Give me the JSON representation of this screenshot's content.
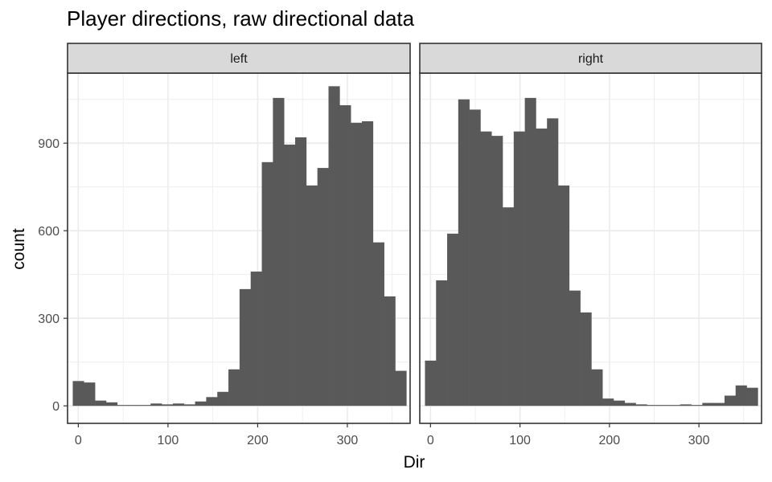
{
  "chart_data": {
    "type": "bar",
    "title": "Player directions, raw directional data",
    "xlabel": "Dir",
    "ylabel": "count",
    "bin_width": 12.4,
    "first_bin_center": 0,
    "xlim": [
      -12,
      370
    ],
    "ylim": [
      -60,
      1140
    ],
    "x_ticks": [
      0,
      100,
      200,
      300
    ],
    "y_ticks": [
      0,
      300,
      600,
      900
    ],
    "grid": true,
    "panels": [
      {
        "label": "left",
        "values": [
          85,
          80,
          18,
          12,
          3,
          3,
          3,
          8,
          5,
          8,
          5,
          15,
          30,
          48,
          125,
          400,
          460,
          835,
          1055,
          895,
          920,
          755,
          815,
          1095,
          1030,
          970,
          975,
          560,
          375,
          120
        ]
      },
      {
        "label": "right",
        "values": [
          155,
          430,
          590,
          1050,
          1015,
          940,
          925,
          680,
          940,
          1055,
          950,
          985,
          755,
          395,
          320,
          125,
          25,
          18,
          10,
          5,
          3,
          3,
          3,
          5,
          3,
          10,
          10,
          35,
          70,
          62
        ]
      }
    ],
    "colors": {
      "bar": "#595959",
      "strip_fill": "#d9d9d9",
      "grid": "#ebebeb",
      "border": "#333333",
      "tick_text": "#4d4d4d"
    }
  }
}
